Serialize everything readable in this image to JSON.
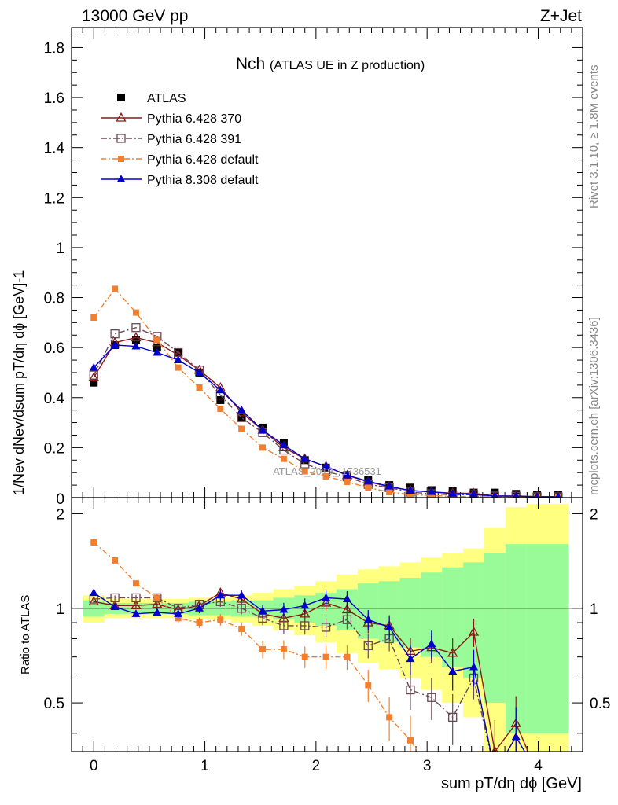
{
  "header": {
    "energy": "13000 GeV pp",
    "process": "Z+Jet"
  },
  "side_labels": {
    "rivet": "Rivet 3.1.10, ≥ 1.8M events",
    "mcplots": "mcplots.cern.ch [arXiv:1306.3436]"
  },
  "chart_data": {
    "type": "line",
    "title": "Nch",
    "subtitle": "(ATLAS UE in Z production)",
    "watermark": "ATLAS_2019_I1736531",
    "xlabel": "sum pT/dη dϕ [GeV]",
    "ylabel": "1/Nev dNev/dsum pT/dη dϕ [GeV]-1",
    "ratio_ylabel": "Ratio to ATLAS",
    "xlim": [
      -0.2,
      4.4
    ],
    "ylim": [
      0,
      1.88
    ],
    "ratio_ylim": [
      0.35,
      2.25
    ],
    "ratio_scale": "log",
    "legend_position": "top-left",
    "x_ticks": [
      0,
      1,
      2,
      3,
      4
    ],
    "y_ticks": [
      0.2,
      0.4,
      0.6,
      0.8,
      1,
      1.2,
      1.4,
      1.6,
      1.8
    ],
    "ratio_ticks": [
      0.5,
      1,
      2
    ],
    "x": [
      0,
      0.19,
      0.38,
      0.57,
      0.76,
      0.95,
      1.14,
      1.33,
      1.52,
      1.71,
      1.9,
      2.09,
      2.28,
      2.47,
      2.66,
      2.85,
      3.04,
      3.23,
      3.42,
      3.61,
      3.8,
      3.99,
      4.18
    ],
    "series": [
      {
        "name": "ATLAS",
        "role": "data",
        "color": "#000000",
        "values": [
          0.46,
          0.61,
          0.63,
          0.6,
          0.58,
          0.5,
          0.39,
          0.32,
          0.28,
          0.22,
          0.15,
          0.12,
          0.09,
          0.07,
          0.05,
          0.04,
          0.03,
          0.025,
          0.02,
          0.02,
          0.015,
          0.01,
          0.01
        ],
        "band_inner": [
          0.06,
          0.04,
          0.04,
          0.04,
          0.04,
          0.05,
          0.05,
          0.06,
          0.06,
          0.08,
          0.1,
          0.12,
          0.15,
          0.2,
          0.22,
          0.25,
          0.3,
          0.35,
          0.4,
          0.5,
          0.6,
          0.6,
          0.6
        ],
        "band_outer": [
          0.1,
          0.07,
          0.07,
          0.07,
          0.07,
          0.08,
          0.08,
          0.1,
          0.12,
          0.15,
          0.18,
          0.22,
          0.28,
          0.33,
          0.36,
          0.4,
          0.45,
          0.5,
          0.55,
          0.8,
          1.1,
          1.15,
          1.15
        ]
      },
      {
        "name": "Pythia 6.428 370",
        "role": "mc",
        "color": "#8b1a1a",
        "marker": "triangle-open",
        "dash": "",
        "values": [
          0.48,
          0.62,
          0.64,
          0.62,
          0.57,
          0.51,
          0.44,
          0.34,
          0.27,
          0.2,
          0.155,
          0.125,
          0.089,
          0.063,
          0.044,
          0.029,
          0.0225,
          0.018,
          0.017,
          0.007,
          0.0065,
          0.004,
          0.004
        ],
        "ratio": [
          1.05,
          1.02,
          1.02,
          1.03,
          0.99,
          1.02,
          1.12,
          1.07,
          0.96,
          0.93,
          0.96,
          1.04,
          0.99,
          0.9,
          0.88,
          0.73,
          0.75,
          0.72,
          0.84,
          0.35,
          0.43,
          0.3,
          0.3
        ]
      },
      {
        "name": "Pythia 6.428 391",
        "role": "mc",
        "color": "#6b4a55",
        "marker": "square-open",
        "dash": "8,3,2,3",
        "values": [
          0.49,
          0.655,
          0.68,
          0.645,
          0.58,
          0.51,
          0.41,
          0.32,
          0.26,
          0.19,
          0.135,
          0.105,
          0.083,
          0.053,
          0.04,
          0.022,
          0.0155,
          0.011,
          0.012,
          0.006,
          0.005,
          0.003,
          0.003
        ],
        "ratio": [
          1.07,
          1.08,
          1.08,
          1.08,
          1.0,
          1.03,
          1.05,
          1.0,
          0.93,
          0.88,
          0.88,
          0.87,
          0.92,
          0.76,
          0.8,
          0.55,
          0.52,
          0.45,
          0.6,
          0.3,
          0.3,
          0.3,
          0.3
        ]
      },
      {
        "name": "Pythia 6.428 default",
        "role": "mc",
        "color": "#f08030",
        "marker": "square-filled",
        "dash": "7,3,2,3",
        "values": [
          0.72,
          0.835,
          0.74,
          0.63,
          0.52,
          0.44,
          0.355,
          0.275,
          0.2,
          0.155,
          0.105,
          0.085,
          0.063,
          0.04,
          0.022,
          0.013,
          0.008,
          0.005,
          0.004,
          0.003,
          0.002,
          0.002,
          0.002
        ],
        "ratio": [
          1.62,
          1.42,
          1.2,
          1.08,
          0.93,
          0.9,
          0.92,
          0.86,
          0.74,
          0.74,
          0.7,
          0.7,
          0.7,
          0.57,
          0.45,
          0.38,
          0.3,
          0.3,
          0.3,
          0.3,
          0.3,
          0.3,
          0.3
        ]
      },
      {
        "name": "Pythia 8.308 default",
        "role": "mc",
        "color": "#0000cc",
        "marker": "triangle-filled",
        "dash": "",
        "values": [
          0.52,
          0.61,
          0.605,
          0.58,
          0.55,
          0.5,
          0.43,
          0.35,
          0.27,
          0.21,
          0.155,
          0.125,
          0.09,
          0.065,
          0.045,
          0.028,
          0.023,
          0.016,
          0.013,
          0.006,
          0.006,
          0.003,
          0.003
        ],
        "ratio": [
          1.12,
          1.01,
          0.96,
          0.97,
          0.96,
          1.0,
          1.1,
          1.1,
          0.98,
          0.99,
          1.02,
          1.08,
          1.07,
          0.92,
          0.87,
          0.69,
          0.77,
          0.63,
          0.65,
          0.3,
          0.39,
          0.3,
          0.3
        ]
      }
    ]
  }
}
